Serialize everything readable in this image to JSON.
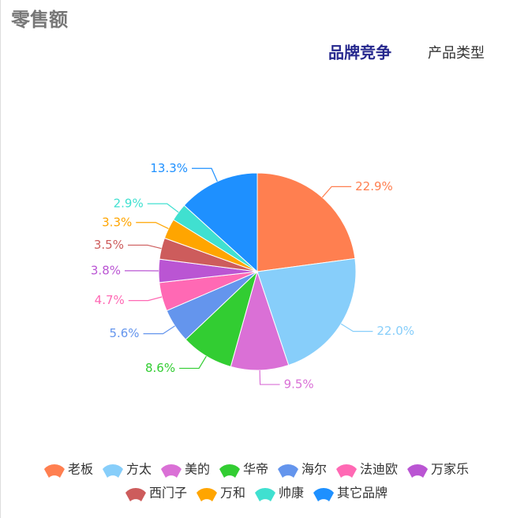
{
  "header": {
    "title": "零售额",
    "tabs": [
      "品牌竞争",
      "产品类型"
    ]
  },
  "chart_data": {
    "type": "pie",
    "categories": [
      "老板",
      "方太",
      "美的",
      "华帝",
      "海尔",
      "法迪欧",
      "万家乐",
      "西门子",
      "万和",
      "帅康",
      "其它品牌"
    ],
    "values": [
      22.9,
      22.0,
      9.5,
      8.6,
      5.6,
      4.7,
      3.8,
      3.5,
      3.3,
      2.9,
      13.3
    ],
    "value_labels": [
      "22.9%",
      "22.0%",
      "9.5%",
      "8.6%",
      "5.6%",
      "4.7%",
      "3.8%",
      "3.5%",
      "3.3%",
      "2.9%",
      "13.3%"
    ],
    "colors": [
      "#ff7f50",
      "#87cefa",
      "#da70d6",
      "#32cd32",
      "#6495ed",
      "#ff69b4",
      "#ba55d3",
      "#cd5c5c",
      "#ffa500",
      "#40e0d0",
      "#1e90ff"
    ],
    "legend": "bottom"
  }
}
